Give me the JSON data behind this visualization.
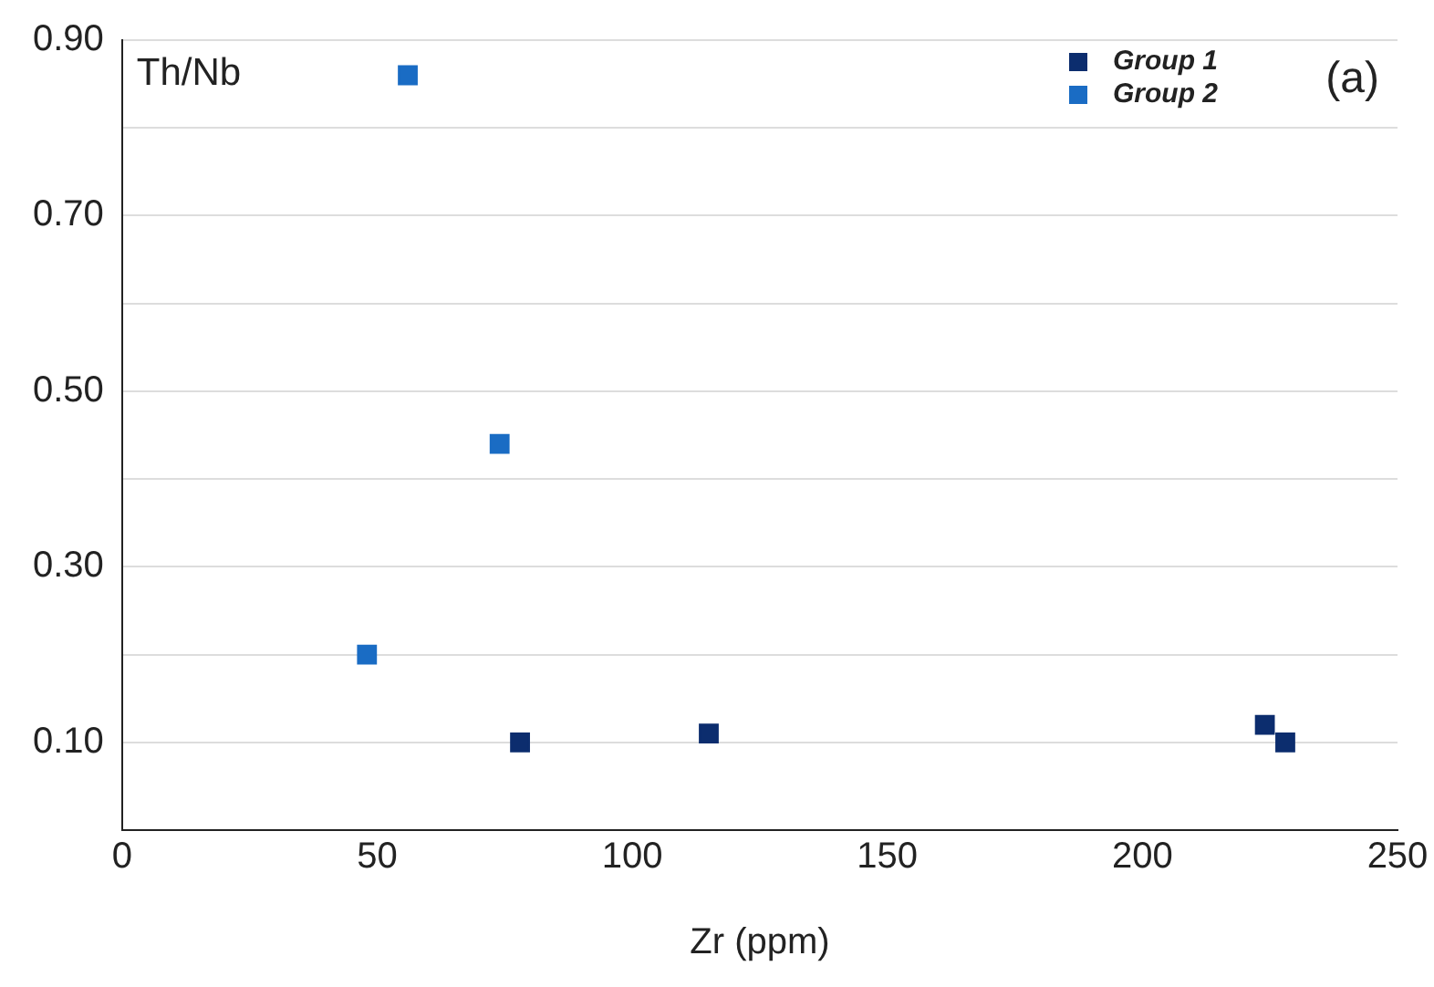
{
  "chart_data": {
    "type": "scatter",
    "xlabel": "Zr (ppm)",
    "ylabel": "Th/Nb",
    "annotations": [
      "(a)"
    ],
    "series": [
      {
        "name": "Group 1",
        "color": "#0c2d6e",
        "x": [
          78,
          115,
          224,
          228
        ],
        "values": [
          0.1,
          0.11,
          0.12,
          0.1
        ]
      },
      {
        "name": "Group 2",
        "color": "#1a6cc4",
        "x": [
          48,
          56,
          74
        ],
        "values": [
          0.2,
          0.86,
          0.44
        ]
      }
    ],
    "xlim": [
      0,
      250
    ],
    "xticks": [
      0,
      50,
      100,
      150,
      200,
      250
    ],
    "ylim": [
      0,
      0.9
    ],
    "yticks": [
      {
        "value": 0.1,
        "label": "0.10"
      },
      {
        "value": 0.2,
        "label": null
      },
      {
        "value": 0.3,
        "label": "0.30"
      },
      {
        "value": 0.4,
        "label": null
      },
      {
        "value": 0.5,
        "label": "0.50"
      },
      {
        "value": 0.6,
        "label": null
      },
      {
        "value": 0.7,
        "label": "0.70"
      },
      {
        "value": 0.8,
        "label": null
      },
      {
        "value": 0.9,
        "label": "0.90"
      }
    ],
    "grid": "y",
    "legend": "top right",
    "marker": "square"
  }
}
